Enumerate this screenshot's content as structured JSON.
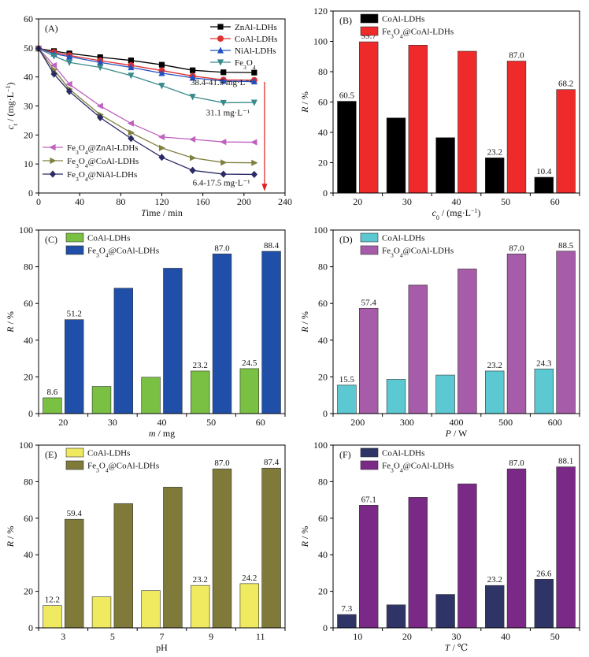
{
  "chart_data": [
    {
      "id": "A",
      "panel_label": "(A)",
      "type": "line",
      "xlabel": "Time / min",
      "ylabel": "c_t / (mg·L⁻¹)",
      "xlim": [
        0,
        240
      ],
      "ylim": [
        0,
        60
      ],
      "xticks": [
        0,
        40,
        80,
        120,
        160,
        200,
        240
      ],
      "yticks": [
        0,
        10,
        20,
        30,
        40,
        50,
        60
      ],
      "legend_top": [
        "ZnAl-LDHs",
        "CoAl-LDHs",
        "NiAl-LDHs",
        "Fe3O4"
      ],
      "legend_bottom": [
        "Fe3O4@ZnAl-LDHs",
        "Fe3O4@CoAl-LDHs",
        "Fe3O4@NiAl-LDHs"
      ],
      "series": [
        {
          "name": "ZnAl-LDHs",
          "color": "#000000",
          "marker": "square",
          "x": [
            0,
            15,
            30,
            60,
            90,
            120,
            150,
            180,
            210
          ],
          "y": [
            49.8,
            48.9,
            48.1,
            46.8,
            45.7,
            44.2,
            42.3,
            41.6,
            41.5
          ]
        },
        {
          "name": "CoAl-LDHs",
          "color": "#e03030",
          "marker": "circle",
          "x": [
            0,
            15,
            30,
            60,
            90,
            120,
            150,
            180,
            210
          ],
          "y": [
            49.8,
            48.5,
            47.4,
            45.6,
            44.0,
            42.2,
            40.3,
            39.0,
            38.9
          ]
        },
        {
          "name": "NiAl-LDHs",
          "color": "#2050c0",
          "marker": "triangle-up",
          "x": [
            0,
            15,
            30,
            60,
            90,
            120,
            150,
            180,
            210
          ],
          "y": [
            49.8,
            48.0,
            47.0,
            45.0,
            43.3,
            41.3,
            39.7,
            38.6,
            38.4
          ]
        },
        {
          "name": "Fe3O4",
          "color": "#3a8a8a",
          "marker": "triangle-down",
          "x": [
            0,
            15,
            30,
            60,
            90,
            120,
            150,
            180,
            210
          ],
          "y": [
            49.8,
            47.2,
            45.0,
            43.3,
            40.5,
            37.0,
            33.2,
            31.1,
            31.2
          ]
        },
        {
          "name": "Fe3O4@ZnAl-LDHs",
          "color": "#c060c0",
          "marker": "triangle-left",
          "x": [
            0,
            15,
            30,
            60,
            90,
            120,
            150,
            180,
            210
          ],
          "y": [
            49.8,
            44.0,
            37.5,
            30.0,
            24.0,
            19.3,
            18.5,
            17.6,
            17.5
          ]
        },
        {
          "name": "Fe3O4@CoAl-LDHs",
          "color": "#808040",
          "marker": "triangle-right",
          "x": [
            0,
            15,
            30,
            60,
            90,
            120,
            150,
            180,
            210
          ],
          "y": [
            49.8,
            42.5,
            35.8,
            27.0,
            20.8,
            15.5,
            12.1,
            10.5,
            10.4
          ]
        },
        {
          "name": "Fe3O4@NiAl-LDHs",
          "color": "#2a2a66",
          "marker": "diamond",
          "x": [
            0,
            15,
            30,
            60,
            90,
            120,
            150,
            180,
            210
          ],
          "y": [
            49.8,
            41.0,
            35.0,
            26.0,
            18.8,
            12.3,
            7.8,
            6.5,
            6.4
          ]
        }
      ],
      "annotations": [
        "38.4-41.5 mg·L⁻¹",
        "31.1 mg·L⁻¹",
        "6.4-17.5 mg·L⁻¹"
      ]
    },
    {
      "id": "B",
      "panel_label": "(B)",
      "type": "bar",
      "xlabel": "c₀ / (mg·L⁻¹)",
      "ylabel": "R / %",
      "ylim": [
        0,
        120
      ],
      "yticks": [
        0,
        20,
        40,
        60,
        80,
        100,
        120
      ],
      "categories": [
        "20",
        "30",
        "40",
        "50",
        "60"
      ],
      "series": [
        {
          "name": "CoAl-LDHs",
          "color": "#000000",
          "values": [
            60.5,
            49.5,
            36.5,
            23.2,
            10.4
          ],
          "labels": [
            "60.5",
            "",
            "",
            "23.2",
            "10.4"
          ]
        },
        {
          "name": "Fe3O4@CoAl-LDHs",
          "color": "#ee2a2a",
          "values": [
            99.7,
            97.5,
            93.5,
            87.0,
            68.2
          ],
          "labels": [
            "99.7",
            "",
            "",
            "87.0",
            "68.2"
          ]
        }
      ]
    },
    {
      "id": "C",
      "panel_label": "(C)",
      "type": "bar",
      "xlabel": "m / mg",
      "ylabel": "R / %",
      "ylim": [
        0,
        100
      ],
      "yticks": [
        0,
        20,
        40,
        60,
        80,
        100
      ],
      "categories": [
        "20",
        "30",
        "40",
        "50",
        "60"
      ],
      "series": [
        {
          "name": "CoAl-LDHs",
          "color": "#7ac143",
          "values": [
            8.6,
            14.8,
            19.8,
            23.2,
            24.5
          ],
          "labels": [
            "8.6",
            "",
            "",
            "23.2",
            "24.5"
          ]
        },
        {
          "name": "Fe3O4@CoAl-LDHs",
          "color": "#1f4fa8",
          "values": [
            51.2,
            68.3,
            79.2,
            87.0,
            88.4
          ],
          "labels": [
            "51.2",
            "",
            "",
            "87.0",
            "88.4"
          ]
        }
      ]
    },
    {
      "id": "D",
      "panel_label": "(D)",
      "type": "bar",
      "xlabel": "P / W",
      "ylabel": "R / %",
      "ylim": [
        0,
        100
      ],
      "yticks": [
        0,
        20,
        40,
        60,
        80,
        100
      ],
      "categories": [
        "200",
        "300",
        "400",
        "500",
        "600"
      ],
      "series": [
        {
          "name": "CoAl-LDHs",
          "color": "#5bc8d2",
          "values": [
            15.5,
            18.7,
            21.0,
            23.2,
            24.3
          ],
          "labels": [
            "15.5",
            "",
            "",
            "23.2",
            "24.3"
          ]
        },
        {
          "name": "Fe3O4@CoAl-LDHs",
          "color": "#a65ca8",
          "values": [
            57.4,
            70.0,
            78.8,
            87.0,
            88.5
          ],
          "labels": [
            "57.4",
            "",
            "",
            "87.0",
            "88.5"
          ]
        }
      ]
    },
    {
      "id": "E",
      "panel_label": "(E)",
      "type": "bar",
      "xlabel": "pH",
      "ylabel": "R / %",
      "ylim": [
        0,
        100
      ],
      "yticks": [
        0,
        20,
        40,
        60,
        80,
        100
      ],
      "categories": [
        "3",
        "5",
        "7",
        "9",
        "11"
      ],
      "series": [
        {
          "name": "CoAl-LDHs",
          "color": "#efea60",
          "values": [
            12.2,
            17.0,
            20.4,
            23.2,
            24.2
          ],
          "labels": [
            "12.2",
            "",
            "",
            "23.2",
            "24.2"
          ]
        },
        {
          "name": "Fe3O4@CoAl-LDHs",
          "color": "#7f7a3a",
          "values": [
            59.4,
            68.0,
            77.0,
            87.0,
            87.4
          ],
          "labels": [
            "59.4",
            "",
            "",
            "87.0",
            "87.4"
          ]
        }
      ]
    },
    {
      "id": "F",
      "panel_label": "(F)",
      "type": "bar",
      "xlabel": "T / ℃",
      "ylabel": "R / %",
      "ylim": [
        0,
        100
      ],
      "yticks": [
        0,
        20,
        40,
        60,
        80,
        100
      ],
      "categories": [
        "10",
        "20",
        "30",
        "40",
        "50"
      ],
      "series": [
        {
          "name": "CoAl-LDHs",
          "color": "#2e3566",
          "values": [
            7.3,
            12.6,
            18.3,
            23.2,
            26.6
          ],
          "labels": [
            "7.3",
            "",
            "",
            "23.2",
            "26.6"
          ]
        },
        {
          "name": "Fe3O4@CoAl-LDHs",
          "color": "#7a2a86",
          "values": [
            67.1,
            71.4,
            78.8,
            87.0,
            88.1
          ],
          "labels": [
            "67.1",
            "",
            "",
            "87.0",
            "88.1"
          ]
        }
      ]
    }
  ]
}
